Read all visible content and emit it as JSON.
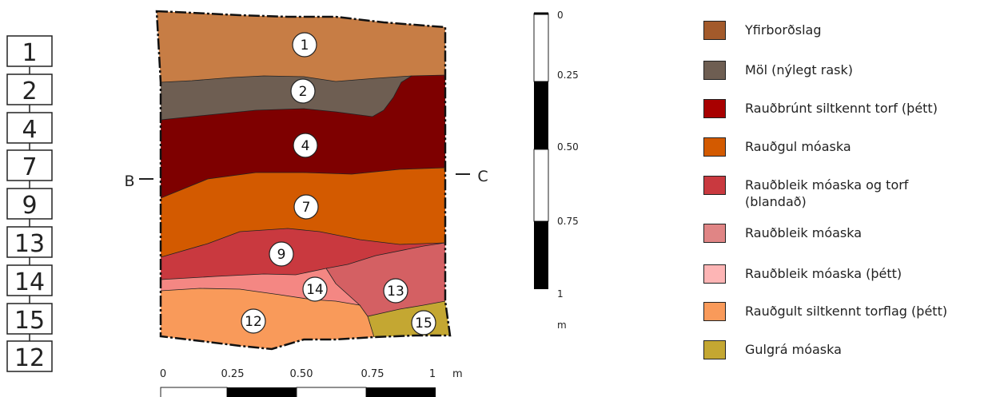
{
  "section_labels": {
    "left": "B",
    "right": "C"
  },
  "sequence": [
    "1",
    "2",
    "4",
    "7",
    "9",
    "13",
    "14",
    "15",
    "12"
  ],
  "layers": [
    {
      "id": "1",
      "color": "#C77D45"
    },
    {
      "id": "2",
      "color": "#6E5E52"
    },
    {
      "id": "4",
      "color": "#7E0000"
    },
    {
      "id": "7",
      "color": "#D35A00"
    },
    {
      "id": "9",
      "color": "#C9393F"
    },
    {
      "id": "14",
      "color": "#F48783"
    },
    {
      "id": "13",
      "color": "#D46063"
    },
    {
      "id": "12",
      "color": "#F99A5A"
    },
    {
      "id": "15",
      "color": "#C4A732"
    }
  ],
  "vertical_scale": {
    "ticks": [
      "0",
      "0.25",
      "0.50",
      "0.75",
      "1"
    ],
    "unit": "m"
  },
  "horizontal_scale": {
    "ticks": [
      "0",
      "0.25",
      "0.50",
      "0.75",
      "1"
    ],
    "unit": "m"
  },
  "legend": [
    {
      "label": "Yfirborðslag",
      "color": "#A35A2B"
    },
    {
      "label": "Möl (nýlegt rask)",
      "color": "#6E5E52"
    },
    {
      "label": "Rauðbrúnt siltkennt torf (þétt)",
      "color": "#A80000"
    },
    {
      "label": "Rauðgul móaska",
      "color": "#D35A00"
    },
    {
      "label": "Rauðbleik móaska og torf\n(blandað)",
      "color": "#C9393F"
    },
    {
      "label": "Rauðbleik móaska",
      "color": "#E08585"
    },
    {
      "label": "Rauðbleik móaska (þétt)",
      "color": "#FDB5B5"
    },
    {
      "label": "Rauðgult siltkennt torflag (þétt)",
      "color": "#F99A5A"
    },
    {
      "label": "Gulgrá móaska",
      "color": "#C4A732"
    }
  ]
}
